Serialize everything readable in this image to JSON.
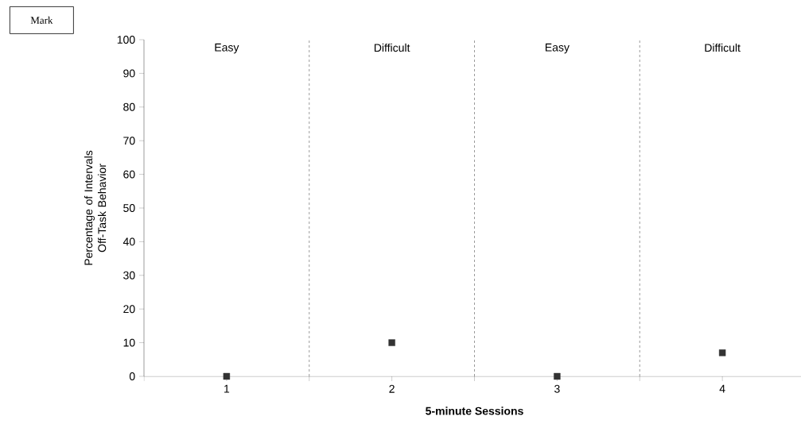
{
  "chart_data": {
    "type": "scatter",
    "xlabel": "5-minute Sessions",
    "ylabel": "Percentage of Intervals Off-Task Behavior",
    "x": [
      1,
      2,
      3,
      4
    ],
    "series": [
      {
        "color": "#333333",
        "values": [
          0,
          10,
          0,
          7
        ]
      }
    ],
    "xlim": [
      0.5,
      4.5
    ],
    "xticks": [
      {
        "value": 0.5,
        "label": null
      },
      1,
      {
        "value": 1.5,
        "label": null
      },
      2,
      {
        "value": 2.5,
        "label": null
      },
      3,
      {
        "value": 3.5,
        "label": null
      },
      4,
      {
        "value": 4.5,
        "label": null
      }
    ],
    "ylim": [
      0,
      100
    ],
    "yticks": [
      0,
      10,
      20,
      30,
      40,
      50,
      60,
      70,
      80,
      90,
      100
    ],
    "ref_lines": [
      {
        "axis": "x",
        "value": 1.5,
        "line_style": "dashed"
      },
      {
        "axis": "x",
        "value": 2.5,
        "line_style": "dashed"
      },
      {
        "axis": "x",
        "value": 3.5,
        "line_style": "dashed"
      }
    ],
    "annotations": [
      "Mark",
      "Easy",
      "Difficult",
      "Easy",
      "Difficult"
    ],
    "marker": "square"
  }
}
